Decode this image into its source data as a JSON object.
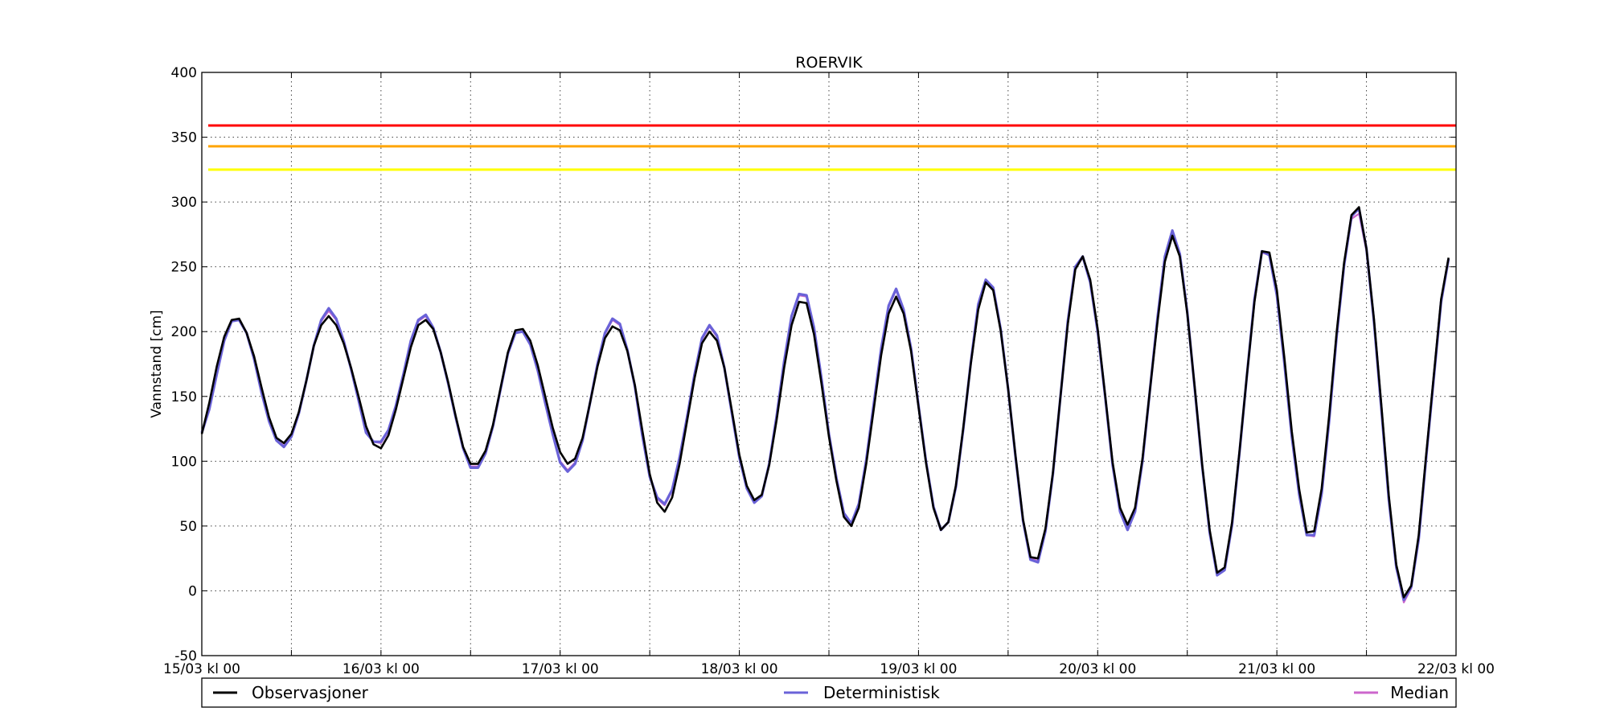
{
  "chart_data": {
    "type": "line",
    "title": "ROERVIK",
    "xlabel": "",
    "ylabel": "Vannstand [cm]",
    "ylim": [
      -50,
      400
    ],
    "yticks": [
      -50,
      0,
      50,
      100,
      150,
      200,
      250,
      300,
      350,
      400
    ],
    "xlim": [
      "15/03 00:00",
      "22/03 00:00"
    ],
    "xtick_labels": [
      "15/03 kl 00",
      "16/03 kl 00",
      "17/03 kl 00",
      "18/03 kl 00",
      "19/03 kl 00",
      "20/03 kl 00",
      "21/03 kl 00",
      "22/03 kl 00"
    ],
    "grid": true,
    "legend_position": "bottom",
    "x_step": "1 hour",
    "series_x_start": "15/03 00:00",
    "thresholds": [
      {
        "value": 359,
        "color": "#ff0000"
      },
      {
        "value": 343,
        "color": "#ffa500"
      },
      {
        "value": 325,
        "color": "#ffff00"
      }
    ],
    "series": [
      {
        "name": "Observasjoner",
        "color": "#000000",
        "values": [
          121,
          145,
          173,
          196,
          209,
          210,
          199,
          181,
          157,
          134,
          118,
          114,
          121,
          138,
          162,
          189,
          205,
          212,
          205,
          191,
          172,
          150,
          127,
          113,
          110,
          120,
          140,
          164,
          188,
          205,
          209,
          202,
          184,
          161,
          135,
          111,
          98,
          98,
          108,
          128,
          156,
          184,
          201,
          202,
          193,
          174,
          150,
          126,
          107,
          98,
          102,
          118,
          145,
          173,
          195,
          204,
          201,
          185,
          159,
          124,
          90,
          68,
          61,
          72,
          98,
          131,
          164,
          191,
          200,
          193,
          172,
          139,
          105,
          81,
          70,
          74,
          97,
          132,
          172,
          205,
          223,
          222,
          198,
          160,
          119,
          85,
          57,
          50,
          64,
          98,
          140,
          182,
          214,
          227,
          214,
          185,
          142,
          99,
          64,
          47,
          53,
          81,
          126,
          175,
          217,
          238,
          232,
          201,
          156,
          104,
          55,
          26,
          25,
          48,
          91,
          149,
          206,
          248,
          258,
          240,
          202,
          151,
          99,
          64,
          51,
          64,
          102,
          155,
          207,
          254,
          274,
          258,
          214,
          157,
          97,
          47,
          14,
          18,
          53,
          108,
          167,
          223,
          262,
          261,
          232,
          180,
          123,
          78,
          45,
          46,
          79,
          135,
          199,
          253,
          290,
          296,
          264,
          210,
          143,
          73,
          20,
          -5,
          4,
          43,
          105,
          165,
          225,
          257
        ]
      },
      {
        "name": "Deterministisk",
        "color": "#6a62d8",
        "values": [
          122,
          140,
          167,
          193,
          208,
          209,
          199,
          179,
          153,
          131,
          116,
          111,
          119,
          137,
          162,
          189,
          209,
          218,
          210,
          193,
          171,
          147,
          122,
          115,
          115,
          124,
          143,
          167,
          193,
          209,
          213,
          203,
          184,
          160,
          134,
          110,
          95,
          95,
          106,
          127,
          155,
          183,
          199,
          200,
          190,
          170,
          145,
          121,
          99,
          92,
          98,
          116,
          145,
          175,
          199,
          210,
          206,
          186,
          158,
          120,
          88,
          72,
          67,
          78,
          103,
          134,
          167,
          195,
          205,
          197,
          172,
          137,
          103,
          79,
          68,
          73,
          98,
          135,
          177,
          212,
          229,
          228,
          203,
          164,
          121,
          87,
          60,
          52,
          67,
          101,
          144,
          187,
          220,
          233,
          217,
          187,
          143,
          100,
          65,
          47,
          53,
          80,
          125,
          176,
          221,
          240,
          234,
          202,
          156,
          103,
          54,
          24,
          22,
          46,
          90,
          149,
          208,
          250,
          258,
          238,
          200,
          150,
          97,
          61,
          47,
          61,
          100,
          155,
          210,
          258,
          278,
          260,
          215,
          156,
          96,
          45,
          12,
          16,
          51,
          107,
          167,
          225,
          262,
          259,
          228,
          176,
          119,
          74,
          43,
          43,
          75,
          131,
          196,
          251,
          289,
          295,
          264,
          208,
          140,
          70,
          18,
          -7,
          3,
          40,
          103,
          163,
          223,
          256
        ]
      },
      {
        "name": "Median",
        "color": "#cc66cc",
        "values": [
          122,
          141,
          168,
          193,
          208,
          209,
          199,
          179,
          154,
          131,
          116,
          112,
          119,
          138,
          162,
          189,
          208,
          216,
          209,
          192,
          171,
          148,
          123,
          115,
          114,
          123,
          142,
          166,
          192,
          208,
          212,
          202,
          184,
          160,
          134,
          110,
          96,
          96,
          106,
          127,
          155,
          183,
          199,
          200,
          190,
          170,
          145,
          121,
          100,
          93,
          99,
          117,
          145,
          175,
          198,
          209,
          205,
          186,
          158,
          121,
          89,
          71,
          66,
          77,
          102,
          134,
          166,
          194,
          204,
          196,
          172,
          138,
          103,
          79,
          69,
          73,
          98,
          135,
          176,
          211,
          228,
          227,
          202,
          163,
          120,
          86,
          59,
          52,
          66,
          100,
          143,
          186,
          219,
          232,
          216,
          186,
          143,
          100,
          65,
          47,
          53,
          80,
          125,
          176,
          220,
          239,
          233,
          201,
          156,
          103,
          55,
          25,
          23,
          47,
          90,
          149,
          207,
          249,
          257,
          239,
          200,
          150,
          98,
          62,
          48,
          62,
          101,
          155,
          209,
          257,
          277,
          259,
          214,
          156,
          96,
          46,
          13,
          17,
          52,
          107,
          167,
          224,
          261,
          259,
          229,
          177,
          120,
          75,
          43,
          42,
          74,
          130,
          195,
          250,
          287,
          291,
          262,
          207,
          140,
          70,
          18,
          -9,
          2,
          40,
          103,
          163,
          223,
          256
        ]
      }
    ]
  }
}
